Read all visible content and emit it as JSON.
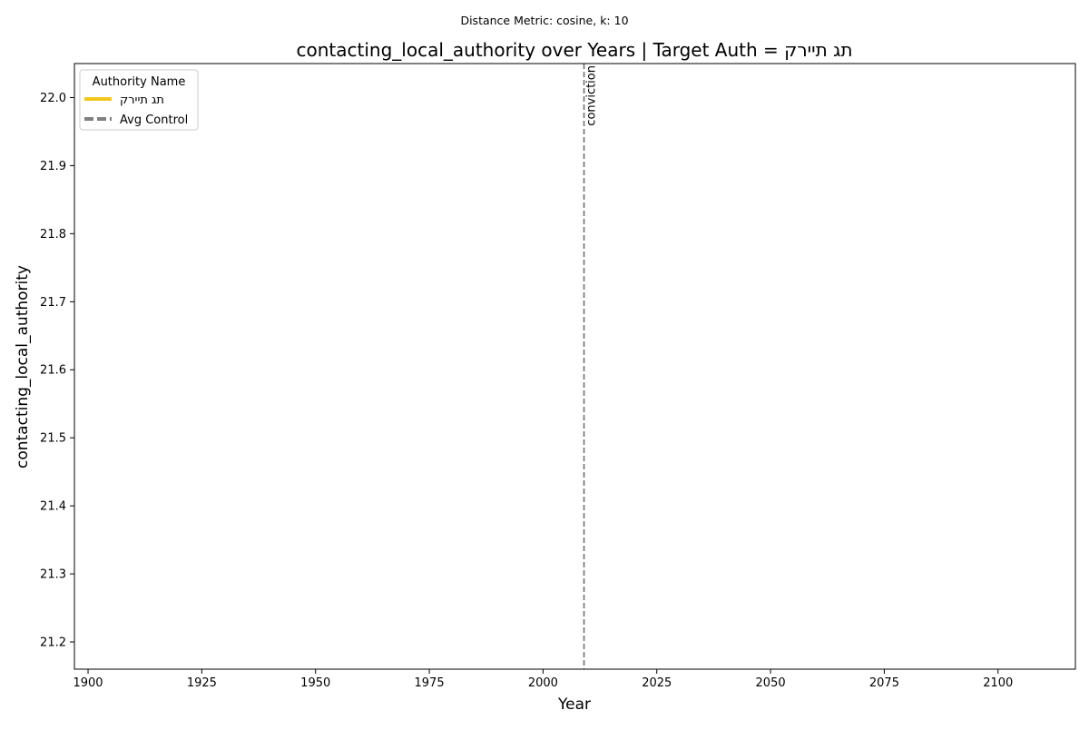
{
  "suptitle": "Distance Metric: cosine, k: 10",
  "chart_data": {
    "type": "line",
    "title": "contacting_local_authority over Years | Target Auth = תג תיירק",
    "xlabel": "Year",
    "ylabel": "contacting_local_authority",
    "xlim": [
      1897,
      2117
    ],
    "ylim": [
      21.16,
      22.05
    ],
    "x_ticks": [
      1900,
      1925,
      1950,
      1975,
      2000,
      2025,
      2050,
      2075,
      2100
    ],
    "y_ticks": [
      21.2,
      21.3,
      21.4,
      21.5,
      21.6,
      21.7,
      21.8,
      21.9,
      22.0
    ],
    "grid": false,
    "legend": {
      "title": "Authority Name",
      "placement": "top-left",
      "entries": [
        {
          "label": "תג תיירק",
          "color": "#f2c81e",
          "style": "solid"
        },
        {
          "label": "Avg Control",
          "color": "#808080",
          "style": "dashed"
        }
      ]
    },
    "series": [
      {
        "name": "תג תיירק",
        "x": [],
        "y": []
      },
      {
        "name": "Avg Control",
        "x": [],
        "y": []
      }
    ],
    "vline": {
      "x": 2009,
      "label": "conviction",
      "color": "#707070"
    }
  }
}
